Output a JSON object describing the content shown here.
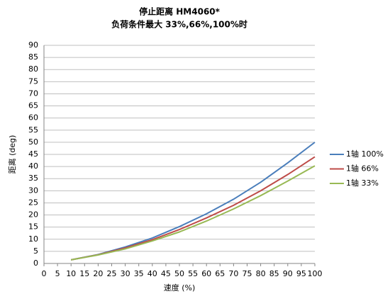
{
  "chart_data": {
    "type": "line",
    "title": "停止距离 HM4060*",
    "subtitle": "负荷条件最大 33%,66%,100%时",
    "x_label": "速度 (%)",
    "y_label": "距离 (deg)",
    "x": [
      10,
      20,
      30,
      40,
      50,
      60,
      70,
      80,
      90,
      100
    ],
    "series": [
      {
        "name": "1轴 100%",
        "color": "#4a7ebb",
        "values": [
          1.5,
          3.7,
          6.8,
          10.5,
          15.2,
          20.5,
          26.5,
          33.5,
          41.5,
          50
        ]
      },
      {
        "name": "1轴 66%",
        "color": "#be4b48",
        "values": [
          1.5,
          3.6,
          6.4,
          9.8,
          14,
          18.8,
          24,
          30,
          36.7,
          44
        ]
      },
      {
        "name": "1轴 33%",
        "color": "#98b954",
        "values": [
          1.5,
          3.5,
          6,
          9.3,
          13,
          17.5,
          22.5,
          28,
          34,
          40.3
        ]
      }
    ],
    "xlim": [
      0,
      100
    ],
    "xticks": [
      0,
      5,
      10,
      15,
      20,
      25,
      30,
      35,
      40,
      45,
      50,
      55,
      60,
      65,
      70,
      75,
      80,
      85,
      90,
      95,
      100
    ],
    "ylim": [
      0,
      90
    ],
    "yticks": [
      0,
      5,
      10,
      15,
      20,
      25,
      30,
      35,
      40,
      45,
      50,
      55,
      60,
      65,
      70,
      75,
      80,
      85,
      90
    ],
    "grid": true,
    "legend": "right"
  }
}
